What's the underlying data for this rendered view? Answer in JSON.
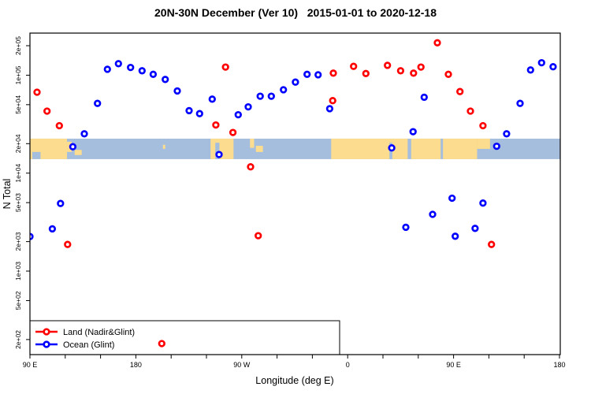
{
  "chart_data": {
    "type": "scatter",
    "title": "20N-30N December (Ver 10)   2015-01-01 to 2020-12-18",
    "xlabel": "Longitude (deg E)",
    "ylabel": "N Total",
    "x_axis": {
      "lim": [
        90,
        540
      ],
      "minor_tick_step_deg": 30,
      "major_ticks": [
        {
          "lon": 90,
          "label": "90 E"
        },
        {
          "lon": 180,
          "label": "180"
        },
        {
          "lon": 270,
          "label": "90 W"
        },
        {
          "lon": 360,
          "label": "0"
        },
        {
          "lon": 450,
          "label": "90 E"
        },
        {
          "lon": 540,
          "label": "180"
        }
      ]
    },
    "y_axis": {
      "scale": "log",
      "ticks": [
        {
          "v": 200000,
          "label": "2e+05"
        },
        {
          "v": 100000,
          "label": "1e+05"
        },
        {
          "v": 50000,
          "label": "5e+04"
        },
        {
          "v": 20000,
          "label": "2e+04"
        },
        {
          "v": 10000,
          "label": "1e+04"
        },
        {
          "v": 5000,
          "label": "5e+03"
        },
        {
          "v": 2000,
          "label": "2e+03"
        },
        {
          "v": 1000,
          "label": "1e+03"
        },
        {
          "v": 500,
          "label": "5e+02"
        },
        {
          "v": 200,
          "label": "2e+02"
        }
      ]
    },
    "series": [
      {
        "name": "Land (Nadir&Glint)",
        "color": "#ff0000",
        "points": [
          [
            96,
            67000
          ],
          [
            104.5,
            43000
          ],
          [
            115,
            30500
          ],
          [
            122,
            1870
          ],
          [
            202,
            182
          ],
          [
            248,
            31000
          ],
          [
            256.2,
            121000
          ],
          [
            262.5,
            26000
          ],
          [
            277.5,
            11600
          ],
          [
            284,
            2300
          ],
          [
            347.3,
            55000
          ],
          [
            347.8,
            105000
          ],
          [
            365,
            123000
          ],
          [
            375.5,
            104000
          ],
          [
            393.8,
            126000
          ],
          [
            405,
            111000
          ],
          [
            416,
            105000
          ],
          [
            422.3,
            121000
          ],
          [
            436.2,
            214000
          ],
          [
            445.6,
            102000
          ],
          [
            455.4,
            68000
          ],
          [
            464.3,
            43000
          ],
          [
            475,
            30500
          ],
          [
            482.2,
            1870
          ]
        ]
      },
      {
        "name": "Ocean (Glint)",
        "color": "#0000ff",
        "points": [
          [
            90,
            2250
          ],
          [
            109,
            2700
          ],
          [
            116,
            4900
          ],
          [
            126.4,
            18600
          ],
          [
            136.2,
            25200
          ],
          [
            147.4,
            51500
          ],
          [
            155.8,
            115000
          ],
          [
            165.2,
            131000
          ],
          [
            175.5,
            120000
          ],
          [
            185.3,
            111000
          ],
          [
            194.7,
            102000
          ],
          [
            205,
            90500
          ],
          [
            215.2,
            69000
          ],
          [
            225.3,
            43500
          ],
          [
            234.2,
            40500
          ],
          [
            244.9,
            57000
          ],
          [
            250.7,
            15500
          ],
          [
            267,
            39500
          ],
          [
            275.5,
            47500
          ],
          [
            285.7,
            61000
          ],
          [
            295.1,
            61000
          ],
          [
            305.4,
            71000
          ],
          [
            315.6,
            85000
          ],
          [
            325.5,
            102000
          ],
          [
            334.9,
            101000
          ],
          [
            344.7,
            45500
          ],
          [
            397.4,
            18100
          ],
          [
            409.4,
            2800
          ],
          [
            415.6,
            26500
          ],
          [
            425,
            59500
          ],
          [
            432.2,
            3800
          ],
          [
            448.7,
            5550
          ],
          [
            451.4,
            2270
          ],
          [
            468.3,
            2730
          ],
          [
            475,
            4950
          ],
          [
            486.6,
            18800
          ],
          [
            495.1,
            25200
          ],
          [
            506.5,
            51500
          ],
          [
            515.4,
            113000
          ],
          [
            524.8,
            134000
          ],
          [
            534.6,
            122000
          ]
        ]
      }
    ],
    "map_band": {
      "ocean_color": "#a5bedd",
      "land_color": "#fcdc8e",
      "value_top": 22500,
      "value_bottom": 13900,
      "land_patches": [
        [
          90,
          121.5,
          0,
          1
        ],
        [
          121.5,
          125.5,
          0.15,
          0.65
        ],
        [
          128,
          134,
          0.55,
          0.8
        ],
        [
          203,
          205,
          0.3,
          0.5
        ],
        [
          243.5,
          263,
          0,
          1
        ],
        [
          277,
          280.5,
          0,
          0.45
        ],
        [
          282,
          288,
          0.35,
          0.65
        ],
        [
          346,
          411,
          0,
          1
        ],
        [
          414,
          439,
          0,
          1
        ],
        [
          441,
          470,
          0,
          1
        ],
        [
          470,
          481,
          0,
          0.5
        ]
      ],
      "water_patches": [
        [
          92,
          99,
          0.65,
          1
        ],
        [
          247.5,
          251,
          0.2,
          1
        ],
        [
          395.5,
          398,
          0.2,
          1
        ]
      ]
    },
    "legend": {
      "position": "bottom-left",
      "items": [
        {
          "label": "Land (Nadir&Glint)",
          "color": "#ff0000"
        },
        {
          "label": "Ocean (Glint)",
          "color": "#0000ff"
        }
      ]
    }
  }
}
